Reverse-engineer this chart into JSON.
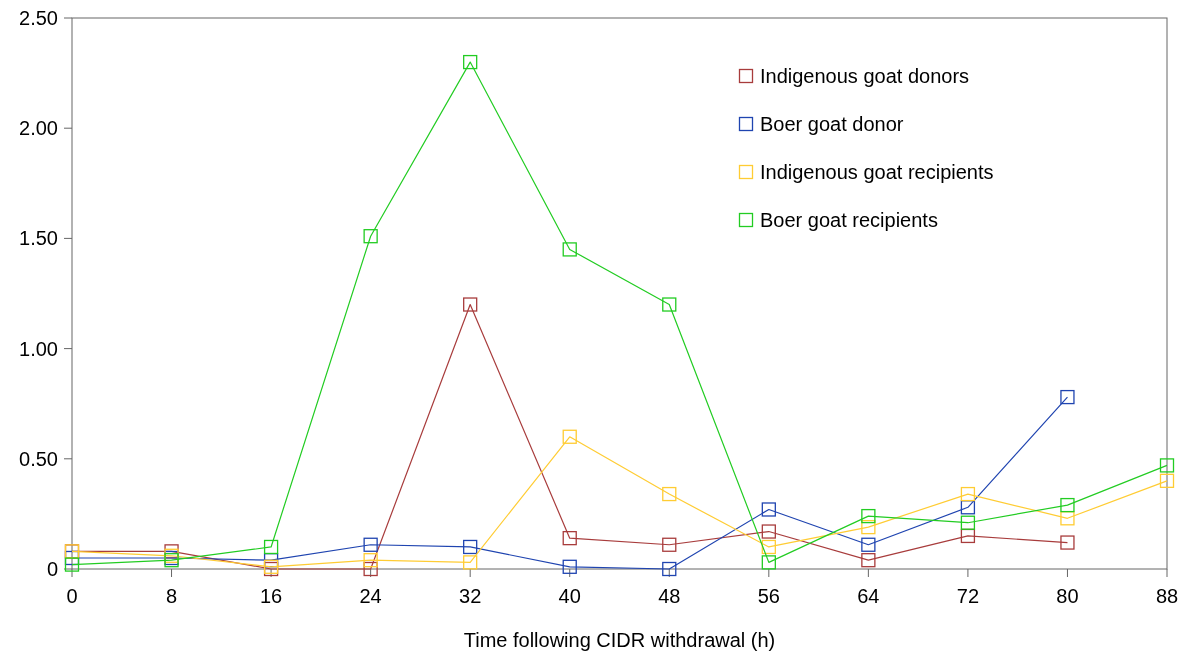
{
  "chart_data": {
    "type": "line",
    "xlabel": "Time following CIDR withdrawal (h)",
    "x": [
      0,
      8,
      16,
      24,
      32,
      40,
      48,
      56,
      64,
      72,
      80,
      88
    ],
    "xlim": [
      0,
      88
    ],
    "xticks": [
      0,
      8,
      16,
      24,
      32,
      40,
      48,
      56,
      64,
      72,
      80,
      88
    ],
    "ylim": [
      0,
      2.5
    ],
    "yticks": [
      {
        "value": 0,
        "label": "0"
      },
      {
        "value": 0.5,
        "label": "0.50"
      },
      {
        "value": 1,
        "label": "1.00"
      },
      {
        "value": 1.5,
        "label": "1.50"
      },
      {
        "value": 2,
        "label": "2.00"
      },
      {
        "value": 2.5,
        "label": "2.50"
      }
    ],
    "grid": false,
    "legend": "top right",
    "marker": "square",
    "line_style": "solid",
    "series": [
      {
        "name": "Indigenous goat donors",
        "color": "#a83c3c",
        "values": [
          0.08,
          0.08,
          0.0,
          0.0,
          1.2,
          0.14,
          0.11,
          0.17,
          0.04,
          0.15,
          0.12,
          null
        ]
      },
      {
        "name": "Boer goat donor",
        "color": "#1f44b0",
        "values": [
          0.05,
          0.05,
          0.04,
          0.11,
          0.1,
          0.01,
          0.0,
          0.27,
          0.11,
          0.28,
          0.78,
          null
        ]
      },
      {
        "name": "Indigenous goat recipients",
        "color": "#ffcc33",
        "values": [
          0.08,
          0.06,
          0.01,
          0.04,
          0.03,
          0.6,
          0.34,
          0.1,
          0.19,
          0.34,
          0.23,
          0.4
        ]
      },
      {
        "name": "Boer goat recipients",
        "color": "#22cc22",
        "values": [
          0.02,
          0.04,
          0.1,
          1.51,
          2.3,
          1.45,
          1.2,
          0.03,
          0.24,
          0.21,
          0.29,
          0.47
        ]
      }
    ]
  }
}
